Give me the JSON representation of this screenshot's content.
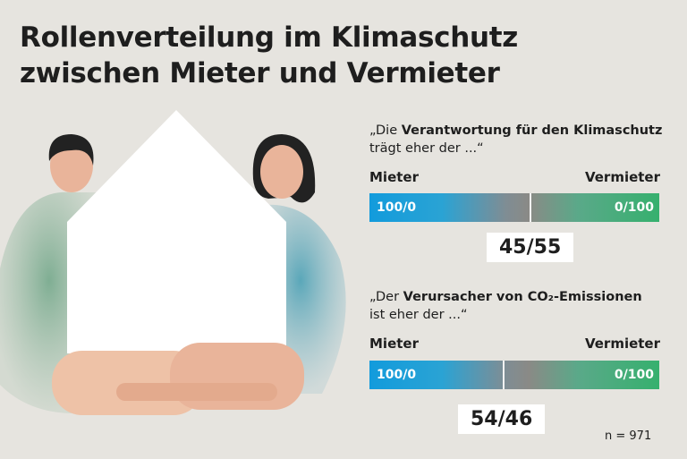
{
  "header": {
    "title_lines": [
      "Rollenverteilung im Klimaschutz",
      "zwischen Mieter und Vermieter"
    ]
  },
  "questions": [
    {
      "prefix": "„Die ",
      "emphasis": "Verantwortung für den Klimaschutz",
      "suffix": "trägt eher der ...“",
      "left_label": "Mieter",
      "right_label": "Vermieter",
      "bar_left": "100/0",
      "bar_right": "0/100",
      "result": "45/55"
    },
    {
      "prefix": "„Der ",
      "emphasis": "Verursacher von CO₂-Emissionen",
      "suffix": "ist eher der ...“",
      "left_label": "Mieter",
      "right_label": "Vermieter",
      "bar_left": "100/0",
      "bar_right": "0/100",
      "result": "54/46"
    }
  ],
  "footer": {
    "sample": "n = 971"
  }
}
